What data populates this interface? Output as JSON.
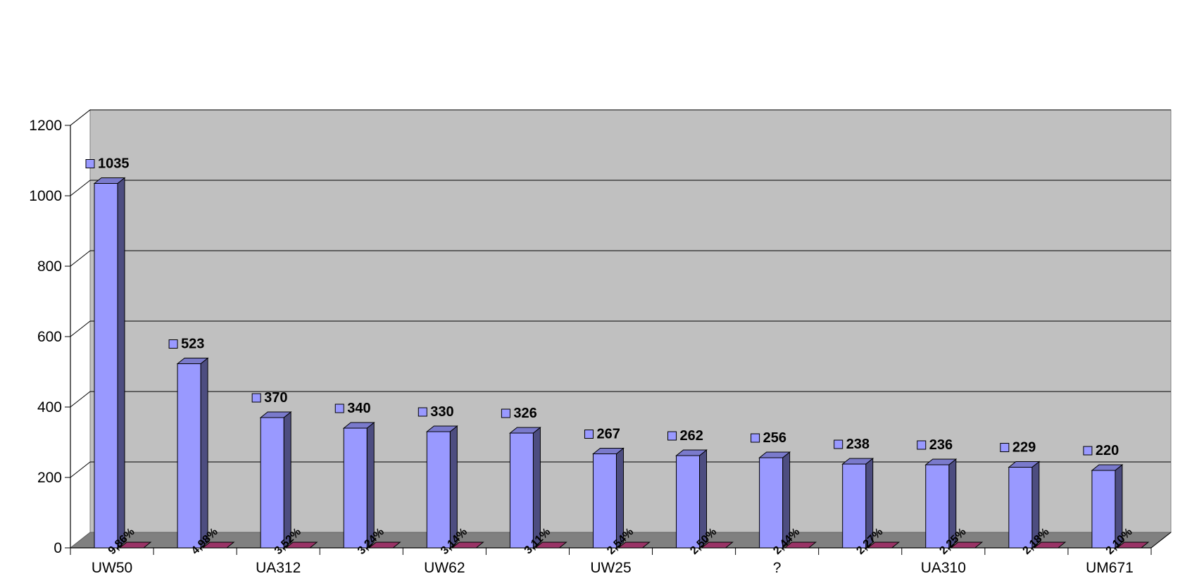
{
  "chart_data": {
    "type": "bar",
    "title": "",
    "xlabel": "",
    "ylabel": "",
    "ylim": [
      0,
      1200
    ],
    "yticks": [
      0,
      200,
      400,
      600,
      800,
      1000,
      1200
    ],
    "grid": true,
    "legend": "none",
    "categories": [
      "UW50",
      "",
      "UA312",
      "",
      "UW62",
      "",
      "UW25",
      "",
      "?",
      "",
      "UA310",
      "",
      "UM671"
    ],
    "series": [
      {
        "values": [
          1035,
          523,
          370,
          340,
          330,
          326,
          267,
          262,
          256,
          238,
          236,
          229,
          220
        ],
        "color": "#9999ff"
      },
      {
        "values": [
          9.86,
          4.98,
          3.52,
          3.24,
          3.14,
          3.11,
          2.54,
          2.5,
          2.44,
          2.27,
          2.25,
          2.18,
          2.1
        ],
        "unit": "%",
        "color": "#993366"
      }
    ],
    "value_labels": [
      "1035",
      "523",
      "370",
      "340",
      "330",
      "326",
      "267",
      "262",
      "256",
      "238",
      "236",
      "229",
      "220"
    ],
    "percent_labels": [
      "9,86%",
      "4,98%",
      "3,52%",
      "3,24%",
      "3,14%",
      "3,11%",
      "2,54%",
      "2,50%",
      "2,44%",
      "2,27%",
      "2,25%",
      "2,18%",
      "2,10%"
    ],
    "tick_labels": [
      "0",
      "200",
      "400",
      "600",
      "800",
      "1000",
      "1200"
    ],
    "colors": {
      "wall": "#c0c0c0",
      "floor": "#808080",
      "bar_front": "#9999ff",
      "bar_side": "#4d4d80",
      "bar_top": "#7a7acc",
      "pct_bar": "#993366",
      "gridline": "#000000"
    }
  }
}
